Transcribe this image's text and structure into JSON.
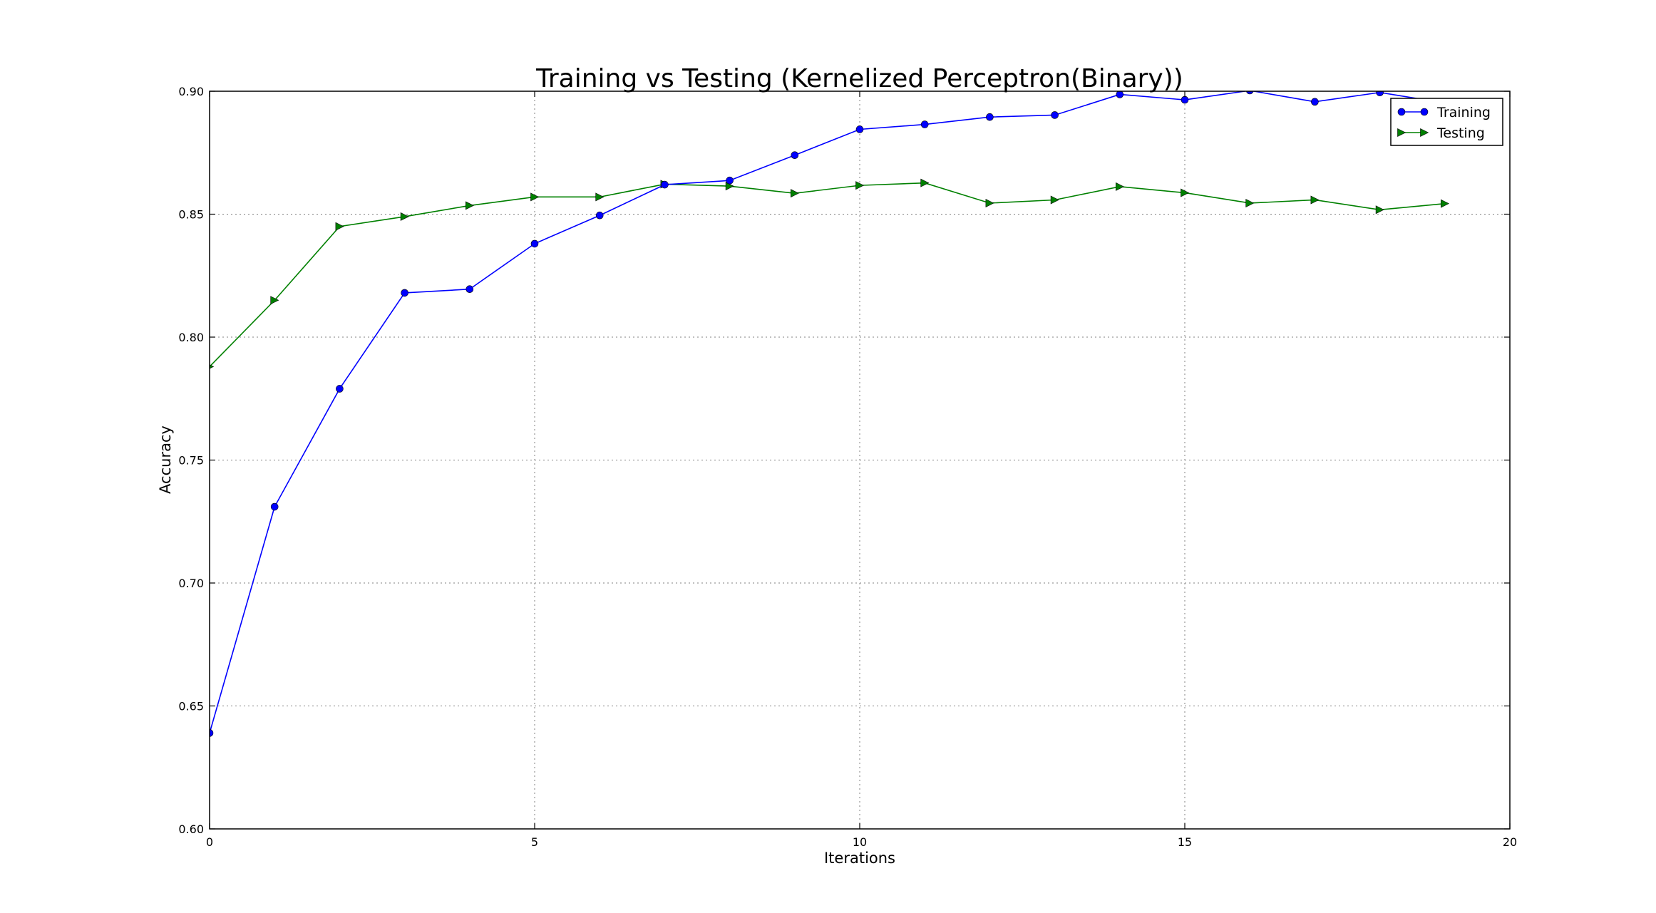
{
  "chart_data": {
    "type": "line",
    "title": "Training vs Testing (Kernelized Perceptron(Binary))",
    "xlabel": "Iterations",
    "ylabel": "Accuracy",
    "xlim": [
      0,
      20
    ],
    "ylim": [
      0.6,
      0.9
    ],
    "xticks": [
      0,
      5,
      10,
      15,
      20
    ],
    "xtick_labels": [
      "0",
      "5",
      "10",
      "15",
      "20"
    ],
    "yticks": [
      0.6,
      0.65,
      0.7,
      0.75,
      0.8,
      0.85,
      0.9
    ],
    "ytick_labels": [
      "0.60",
      "0.65",
      "0.70",
      "0.75",
      "0.80",
      "0.85",
      "0.90"
    ],
    "grid": true,
    "legend_position": "top-right",
    "x": [
      0,
      1,
      2,
      3,
      4,
      5,
      6,
      7,
      8,
      9,
      10,
      11,
      12,
      13,
      14,
      15,
      16,
      17,
      18,
      19
    ],
    "series": [
      {
        "name": "Training",
        "color": "#0000ff",
        "marker": "circle",
        "values": [
          0.639,
          0.731,
          0.779,
          0.818,
          0.8195,
          0.838,
          0.8495,
          0.862,
          0.8637,
          0.874,
          0.8845,
          0.8865,
          0.8895,
          0.8903,
          0.8987,
          0.8965,
          0.9003,
          0.8957,
          0.8995,
          0.8952
        ]
      },
      {
        "name": "Testing",
        "color": "#008000",
        "marker": "triangle-right",
        "values": [
          0.788,
          0.815,
          0.845,
          0.849,
          0.8535,
          0.857,
          0.857,
          0.8622,
          0.8614,
          0.8585,
          0.8617,
          0.8627,
          0.8545,
          0.8558,
          0.8612,
          0.8587,
          0.8545,
          0.8558,
          0.8518,
          0.8543
        ]
      }
    ]
  }
}
